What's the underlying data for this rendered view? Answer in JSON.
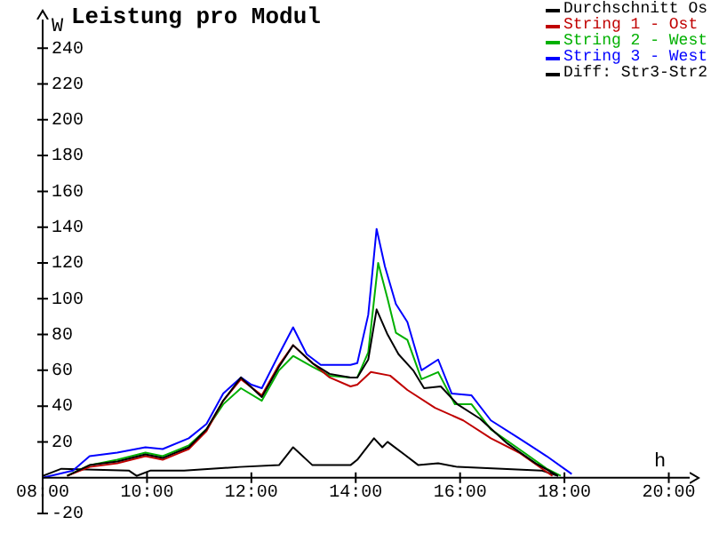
{
  "chart_data": {
    "type": "line",
    "title": "Leistung pro Modul",
    "xlabel": "h",
    "ylabel": "W",
    "xlim": [
      8,
      20.4
    ],
    "ylim": [
      -20,
      256
    ],
    "xticks": [
      {
        "value": 8,
        "label": "08:00"
      },
      {
        "value": 10,
        "label": "10:00"
      },
      {
        "value": 12,
        "label": "12:00"
      },
      {
        "value": 14,
        "label": "14:00"
      },
      {
        "value": 16,
        "label": "16:00"
      },
      {
        "value": 18,
        "label": "18:00"
      },
      {
        "value": 20,
        "label": "20:00"
      }
    ],
    "yticks": [
      -20,
      20,
      40,
      60,
      80,
      100,
      120,
      140,
      160,
      180,
      200,
      220,
      240
    ],
    "grid": false,
    "legend": "top right",
    "marker": "none",
    "line_style": "solid",
    "series": [
      {
        "name": "Durchschnitt Os",
        "color": "#000000",
        "x": [
          8.47,
          8.9,
          9.43,
          9.97,
          10.3,
          10.8,
          11.14,
          11.46,
          11.8,
          12.2,
          12.53,
          12.8,
          13.17,
          13.5,
          13.9,
          14.03,
          14.24,
          14.4,
          14.61,
          14.82,
          15.1,
          15.31,
          15.63,
          15.95,
          16.38,
          16.91,
          17.45,
          17.88
        ],
        "values": [
          1,
          7,
          9,
          13,
          11,
          17,
          27,
          43,
          56,
          45,
          62,
          74,
          64,
          58,
          56,
          56,
          66,
          94,
          80,
          69,
          60,
          50,
          51,
          41,
          33,
          19,
          8,
          1
        ]
      },
      {
        "name": "String 1 - Ost",
        "color": "#c00000",
        "x": [
          8.47,
          8.9,
          9.43,
          9.97,
          10.3,
          10.8,
          11.14,
          11.46,
          11.8,
          12.2,
          12.53,
          12.8,
          13.17,
          13.5,
          13.9,
          14.03,
          14.29,
          14.66,
          14.99,
          15.52,
          16.06,
          16.59,
          17.13,
          17.77
        ],
        "values": [
          1,
          6,
          8,
          12,
          10,
          16,
          26,
          43,
          55,
          46,
          63,
          74,
          64,
          56,
          51,
          52,
          59,
          57,
          49,
          39,
          32,
          22,
          14,
          1
        ]
      },
      {
        "name": "String 2 - West",
        "color": "#00b000",
        "x": [
          8.47,
          8.9,
          9.43,
          9.97,
          10.3,
          10.8,
          11.14,
          11.46,
          11.8,
          12.2,
          12.53,
          12.8,
          13.17,
          13.5,
          13.9,
          14.03,
          14.24,
          14.43,
          14.61,
          14.77,
          14.99,
          15.26,
          15.58,
          15.9,
          16.22,
          16.59,
          17.13,
          17.66,
          17.93
        ],
        "values": [
          1,
          7,
          10,
          14,
          12,
          18,
          27,
          41,
          50,
          43,
          60,
          68,
          62,
          57,
          56,
          56,
          70,
          120,
          100,
          81,
          77,
          55,
          59,
          41,
          41,
          27,
          16,
          5,
          1
        ]
      },
      {
        "name": "String 3 - West",
        "color": "#0000ff",
        "x": [
          8,
          8.58,
          8.9,
          9.43,
          9.97,
          10.3,
          10.8,
          11.14,
          11.46,
          11.8,
          12,
          12.2,
          12.53,
          12.8,
          13.06,
          13.33,
          13.9,
          14.03,
          14.24,
          14.4,
          14.56,
          14.77,
          14.99,
          15.26,
          15.58,
          15.84,
          16.22,
          16.59,
          17.13,
          17.66,
          18.14
        ],
        "values": [
          0,
          4,
          12,
          14,
          17,
          16,
          22,
          30,
          47,
          56,
          52,
          50,
          69,
          84,
          69,
          63,
          63,
          64,
          91,
          139,
          118,
          97,
          87,
          60,
          66,
          47,
          46,
          32,
          22,
          12,
          2
        ]
      },
      {
        "name": "Diff: Str3-Str2",
        "color": "#000000",
        "x": [
          8,
          8.36,
          9.65,
          9.8,
          10.07,
          10.71,
          11.78,
          12.53,
          12.8,
          13.17,
          13.9,
          14.03,
          14.35,
          14.51,
          14.61,
          14.93,
          15.2,
          15.58,
          15.95,
          16.81,
          17.56,
          17.88
        ],
        "values": [
          1,
          5,
          4,
          1,
          4,
          4,
          6,
          7,
          17,
          7,
          7,
          10,
          22,
          17,
          20,
          13,
          7,
          8,
          6,
          5,
          4,
          1
        ]
      }
    ]
  }
}
